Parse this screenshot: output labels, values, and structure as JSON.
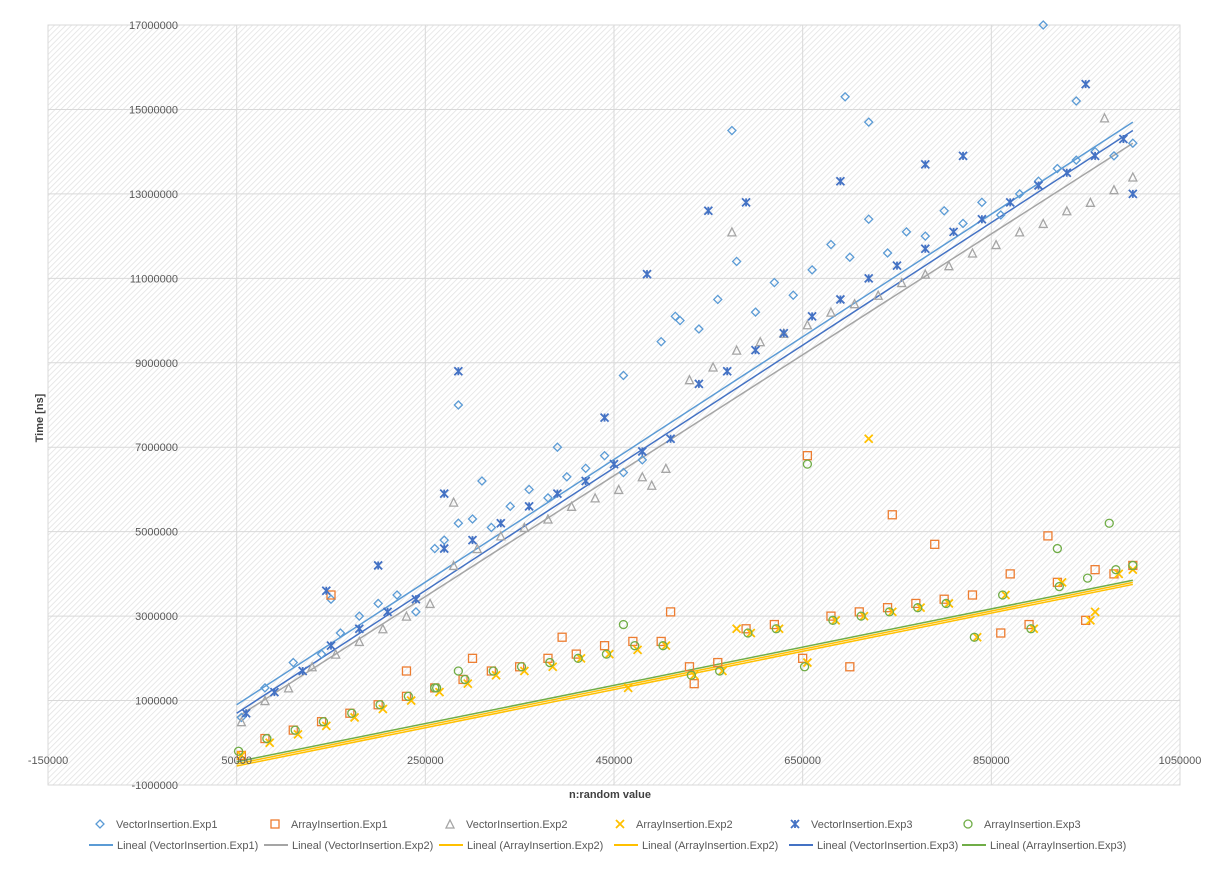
{
  "chart_data": {
    "type": "scatter",
    "title": "",
    "xlabel": "n:random value",
    "ylabel": "Time [ns]",
    "xlim": [
      -150000,
      1050000
    ],
    "ylim": [
      -1000000,
      17000000
    ],
    "x_ticks": [
      -150000,
      50000,
      250000,
      450000,
      650000,
      850000,
      1050000
    ],
    "y_ticks": [
      -1000000,
      1000000,
      3000000,
      5000000,
      7000000,
      9000000,
      11000000,
      13000000,
      15000000,
      17000000
    ],
    "x_tick_labels": [
      "-150000",
      "50000",
      "250000",
      "450000",
      "650000",
      "850000",
      "1050000"
    ],
    "y_tick_labels": [
      "-1000000",
      "1000000",
      "3000000",
      "5000000",
      "7000000",
      "9000000",
      "11000000",
      "13000000",
      "15000000",
      "17000000"
    ],
    "grid": true,
    "legend_position": "bottom",
    "series": [
      {
        "name": "VectorInsertion.Exp1",
        "marker": "diamond",
        "color": "#5B9BD5",
        "x": [
          55000,
          80000,
          110000,
          140000,
          150000,
          160000,
          180000,
          200000,
          220000,
          240000,
          260000,
          270000,
          285000,
          300000,
          320000,
          340000,
          360000,
          380000,
          400000,
          420000,
          440000,
          460000,
          480000,
          500000,
          520000,
          540000,
          560000,
          580000,
          600000,
          620000,
          640000,
          660000,
          680000,
          700000,
          720000,
          740000,
          760000,
          780000,
          800000,
          820000,
          840000,
          860000,
          880000,
          900000,
          920000,
          940000,
          960000,
          980000,
          1000000,
          285000,
          310000,
          390000,
          460000,
          515000,
          575000,
          695000,
          720000,
          905000,
          940000
        ],
        "y": [
          600000,
          1300000,
          1900000,
          2100000,
          3400000,
          2600000,
          3000000,
          3300000,
          3500000,
          3100000,
          4600000,
          4800000,
          5200000,
          5300000,
          5100000,
          5600000,
          6000000,
          5800000,
          6300000,
          6500000,
          6800000,
          6400000,
          6700000,
          9500000,
          10000000,
          9800000,
          10500000,
          11400000,
          10200000,
          10900000,
          10600000,
          11200000,
          11800000,
          11500000,
          12400000,
          11600000,
          12100000,
          12000000,
          12600000,
          12300000,
          12800000,
          12500000,
          13000000,
          13300000,
          13600000,
          13800000,
          14000000,
          13900000,
          14200000,
          8000000,
          6200000,
          7000000,
          8700000,
          10100000,
          14500000,
          15300000,
          14700000,
          17000000,
          15200000
        ]
      },
      {
        "name": "ArrayInsertion.Exp1",
        "marker": "square",
        "color": "#ED7D31",
        "x": [
          55000,
          80000,
          110000,
          140000,
          170000,
          200000,
          230000,
          260000,
          290000,
          320000,
          350000,
          380000,
          410000,
          440000,
          470000,
          500000,
          530000,
          560000,
          590000,
          620000,
          650000,
          680000,
          710000,
          740000,
          770000,
          800000,
          830000,
          860000,
          890000,
          920000,
          950000,
          980000,
          1000000,
          150000,
          230000,
          300000,
          395000,
          510000,
          655000,
          745000,
          790000,
          910000,
          960000,
          535000,
          700000,
          870000
        ],
        "y": [
          -300000,
          100000,
          300000,
          500000,
          700000,
          900000,
          1100000,
          1300000,
          1500000,
          1700000,
          1800000,
          2000000,
          2100000,
          2300000,
          2400000,
          2400000,
          1800000,
          1900000,
          2700000,
          2800000,
          2000000,
          3000000,
          3100000,
          3200000,
          3300000,
          3400000,
          3500000,
          2600000,
          2800000,
          3800000,
          2900000,
          4000000,
          4200000,
          3500000,
          1700000,
          2000000,
          2500000,
          3100000,
          6800000,
          5400000,
          4700000,
          4900000,
          4100000,
          1400000,
          1800000,
          4000000
        ]
      },
      {
        "name": "VectorInsertion.Exp2",
        "marker": "triangle",
        "color": "#A5A5A5",
        "x": [
          55000,
          80000,
          105000,
          130000,
          155000,
          180000,
          205000,
          230000,
          255000,
          280000,
          305000,
          330000,
          355000,
          380000,
          405000,
          430000,
          455000,
          480000,
          505000,
          530000,
          555000,
          580000,
          605000,
          630000,
          655000,
          680000,
          705000,
          730000,
          755000,
          780000,
          805000,
          830000,
          855000,
          880000,
          905000,
          930000,
          955000,
          980000,
          1000000,
          280000,
          490000,
          575000,
          970000
        ],
        "y": [
          500000,
          1000000,
          1300000,
          1800000,
          2100000,
          2400000,
          2700000,
          3000000,
          3300000,
          4200000,
          4600000,
          4900000,
          5100000,
          5300000,
          5600000,
          5800000,
          6000000,
          6300000,
          6500000,
          8600000,
          8900000,
          9300000,
          9500000,
          9700000,
          9900000,
          10200000,
          10400000,
          10600000,
          10900000,
          11100000,
          11300000,
          11600000,
          11800000,
          12100000,
          12300000,
          12600000,
          12800000,
          13100000,
          13400000,
          5700000,
          6100000,
          12100000,
          14800000
        ]
      },
      {
        "name": "ArrayInsertion.Exp2",
        "marker": "x",
        "color": "#FFC000",
        "x": [
          55000,
          85000,
          115000,
          145000,
          175000,
          205000,
          235000,
          265000,
          295000,
          325000,
          355000,
          385000,
          415000,
          445000,
          475000,
          505000,
          535000,
          565000,
          595000,
          625000,
          655000,
          685000,
          715000,
          745000,
          775000,
          805000,
          835000,
          865000,
          895000,
          925000,
          955000,
          985000,
          1000000,
          720000,
          465000,
          580000,
          960000
        ],
        "y": [
          -300000,
          0,
          200000,
          400000,
          600000,
          800000,
          1000000,
          1200000,
          1400000,
          1600000,
          1700000,
          1800000,
          2000000,
          2100000,
          2200000,
          2300000,
          1600000,
          1700000,
          2600000,
          2700000,
          1900000,
          2900000,
          3000000,
          3100000,
          3200000,
          3300000,
          2500000,
          3500000,
          2700000,
          3800000,
          2900000,
          4000000,
          4100000,
          7200000,
          1300000,
          2700000,
          3100000
        ]
      },
      {
        "name": "VectorInsertion.Exp3",
        "marker": "star",
        "color": "#4472C4",
        "x": [
          60000,
          90000,
          120000,
          150000,
          180000,
          210000,
          240000,
          270000,
          300000,
          330000,
          360000,
          390000,
          420000,
          450000,
          480000,
          510000,
          540000,
          570000,
          600000,
          630000,
          660000,
          690000,
          720000,
          750000,
          780000,
          810000,
          840000,
          870000,
          900000,
          930000,
          960000,
          990000,
          1000000,
          145000,
          200000,
          270000,
          285000,
          440000,
          485000,
          550000,
          590000,
          690000,
          780000,
          820000,
          950000
        ],
        "y": [
          700000,
          1200000,
          1700000,
          2300000,
          2700000,
          3100000,
          3400000,
          4600000,
          4800000,
          5200000,
          5600000,
          5900000,
          6200000,
          6600000,
          6900000,
          7200000,
          8500000,
          8800000,
          9300000,
          9700000,
          10100000,
          10500000,
          11000000,
          11300000,
          11700000,
          12100000,
          12400000,
          12800000,
          13200000,
          13500000,
          13900000,
          14300000,
          13000000,
          3600000,
          4200000,
          5900000,
          8800000,
          7700000,
          11100000,
          12600000,
          12800000,
          13300000,
          13700000,
          13900000,
          15600000
        ]
      },
      {
        "name": "ArrayInsertion.Exp3",
        "marker": "circle",
        "color": "#70AD47",
        "x": [
          52000,
          82000,
          112000,
          142000,
          172000,
          202000,
          232000,
          262000,
          292000,
          322000,
          352000,
          382000,
          412000,
          442000,
          472000,
          502000,
          532000,
          562000,
          592000,
          622000,
          652000,
          682000,
          712000,
          742000,
          772000,
          802000,
          832000,
          862000,
          892000,
          922000,
          952000,
          982000,
          1000000,
          655000,
          260000,
          285000,
          460000,
          920000,
          975000
        ],
        "y": [
          -200000,
          100000,
          300000,
          500000,
          700000,
          900000,
          1100000,
          1300000,
          1500000,
          1700000,
          1800000,
          1900000,
          2000000,
          2100000,
          2300000,
          2300000,
          1600000,
          1700000,
          2600000,
          2700000,
          1800000,
          2900000,
          3000000,
          3100000,
          3200000,
          3300000,
          2500000,
          3500000,
          2700000,
          3700000,
          3900000,
          4100000,
          4200000,
          6600000,
          1300000,
          1700000,
          2800000,
          4600000,
          5200000
        ]
      }
    ],
    "trendlines": [
      {
        "name": "Lineal (VectorInsertion.Exp1)",
        "color": "#5B9BD5",
        "x": [
          50000,
          1000000
        ],
        "y": [
          900000,
          14700000
        ]
      },
      {
        "name": "Lineal (VectorInsertion.Exp2)",
        "color": "#A5A5A5",
        "x": [
          50000,
          1000000
        ],
        "y": [
          600000,
          14200000
        ]
      },
      {
        "name": "Lineal (ArrayInsertion.Exp2)",
        "color": "#FFC000",
        "x": [
          50000,
          1000000
        ],
        "y": [
          -500000,
          3800000
        ]
      },
      {
        "name": "Lineal (ArrayInsertion.Exp2)",
        "color": "#FFC000",
        "x": [
          50000,
          1000000
        ],
        "y": [
          -550000,
          3750000
        ]
      },
      {
        "name": "Lineal (VectorInsertion.Exp3)",
        "color": "#4472C4",
        "x": [
          50000,
          1000000
        ],
        "y": [
          700000,
          14500000
        ]
      },
      {
        "name": "Lineal (ArrayInsertion.Exp3)",
        "color": "#70AD47",
        "x": [
          50000,
          1000000
        ],
        "y": [
          -450000,
          3850000
        ]
      }
    ]
  }
}
